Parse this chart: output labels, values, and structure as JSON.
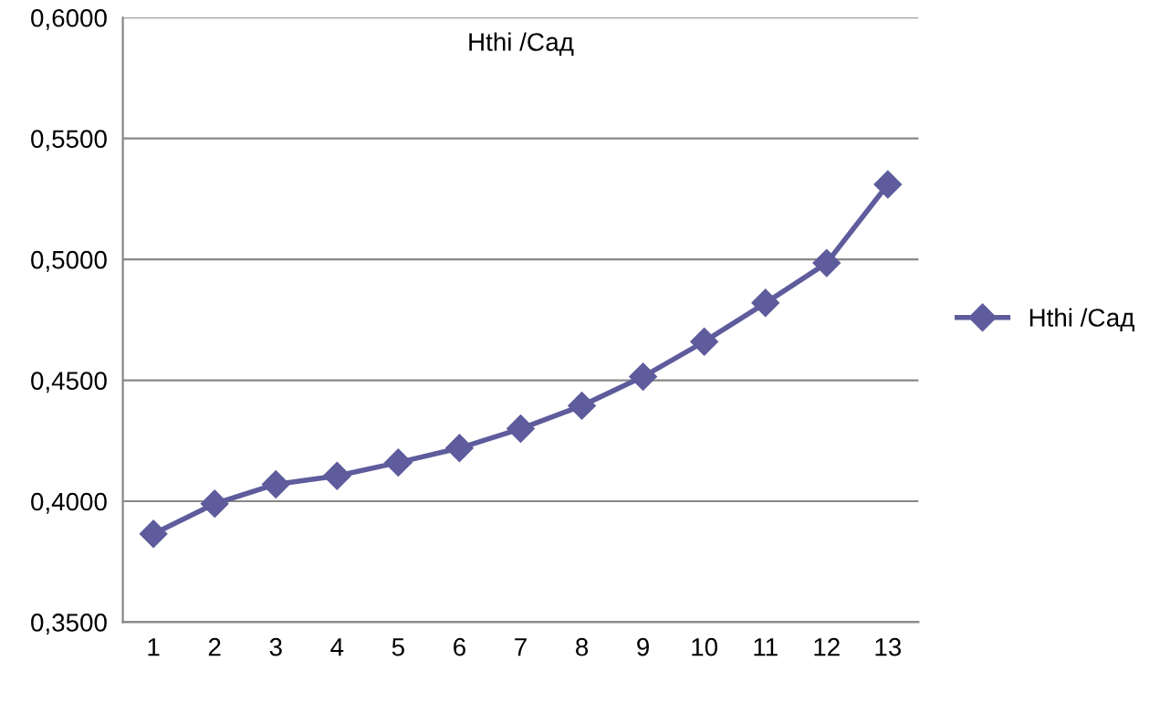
{
  "chart_data": {
    "type": "line",
    "title": "Hthi /Сад",
    "categories": [
      "1",
      "2",
      "3",
      "4",
      "5",
      "6",
      "7",
      "8",
      "9",
      "10",
      "11",
      "12",
      "13"
    ],
    "series": [
      {
        "name": "Hthi /Сад",
        "color": "#5e5c9c",
        "values": [
          0.3865,
          0.399,
          0.407,
          0.4105,
          0.416,
          0.422,
          0.43,
          0.4395,
          0.4515,
          0.466,
          0.482,
          0.4985,
          0.531
        ]
      }
    ],
    "ylim": [
      0.35,
      0.6
    ],
    "yticks": [
      {
        "value": 0.35,
        "label": "0,3500"
      },
      {
        "value": 0.4,
        "label": "0,4000"
      },
      {
        "value": 0.45,
        "label": "0,4500"
      },
      {
        "value": 0.5,
        "label": "0,5000"
      },
      {
        "value": 0.55,
        "label": "0,5500"
      },
      {
        "value": 0.6,
        "label": "0,6000"
      }
    ],
    "grid": "y",
    "legend": "right",
    "marker": "diamond",
    "line_style": "solid"
  }
}
